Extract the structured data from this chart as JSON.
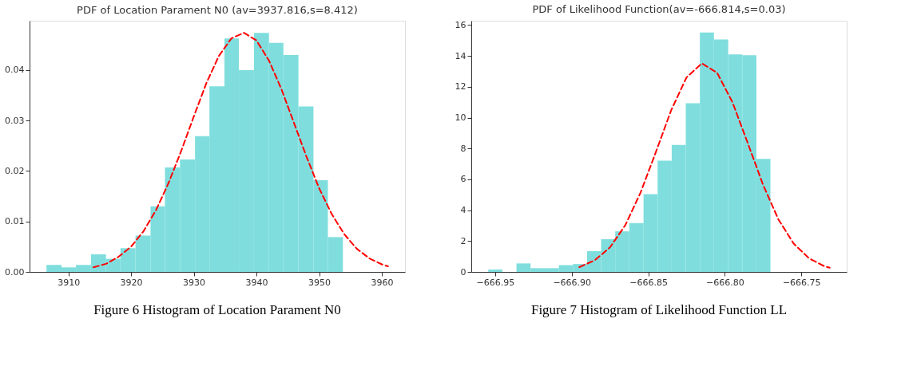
{
  "chart_data": [
    {
      "type": "histogram",
      "title": "PDF of Location Parament N0 (av=3937.816,s=8.412)",
      "annotations": [
        "Figure 6 Histogram of Location Parament N0"
      ],
      "xlim": [
        3903.8,
        3963.7
      ],
      "xticks": [
        3910,
        3920,
        3930,
        3940,
        3950,
        3960
      ],
      "ylim": [
        0,
        0.0498
      ],
      "yticks": [
        {
          "value": 0,
          "label": "0.00"
        },
        0.01,
        0.02,
        0.03,
        0.04
      ],
      "grid": false,
      "series": [
        {
          "type": "histogram",
          "color": "#7fdedd",
          "bins": [
            3906.5,
            3908.9,
            3911.2,
            3913.6,
            3916.0,
            3918.3,
            3920.7,
            3923.1,
            3925.4,
            3927.8,
            3930.2,
            3932.5,
            3934.9,
            3937.2,
            3939.6,
            3942.0,
            3944.3,
            3946.7,
            3949.1,
            3951.4,
            3953.8
          ],
          "values": [
            0.0014,
            0.0009,
            0.0014,
            0.0035,
            0.0026,
            0.0047,
            0.0072,
            0.013,
            0.0207,
            0.0223,
            0.0269,
            0.0368,
            0.0463,
            0.04,
            0.0474,
            0.0454,
            0.043,
            0.0328,
            0.0182,
            0.0069
          ]
        },
        {
          "type": "line",
          "color": "#ff0000",
          "line_style": "dashed",
          "x": [
            3914,
            3916,
            3918,
            3920,
            3922,
            3924,
            3926,
            3928,
            3930,
            3932,
            3934,
            3936,
            3938,
            3940,
            3942,
            3944,
            3946,
            3948,
            3950,
            3952,
            3954,
            3956,
            3958,
            3960,
            3961
          ],
          "values": [
            0.0009,
            0.0016,
            0.003,
            0.005,
            0.0081,
            0.0123,
            0.0177,
            0.024,
            0.0308,
            0.0374,
            0.0428,
            0.0463,
            0.0474,
            0.0459,
            0.0419,
            0.0362,
            0.0295,
            0.0228,
            0.0166,
            0.0115,
            0.0075,
            0.0046,
            0.0027,
            0.0015,
            0.0011
          ]
        }
      ]
    },
    {
      "type": "histogram",
      "title": "PDF of Likelihood Function(av=-666.814,s=0.03)",
      "annotations": [
        "Figure 7 Histogram of Likelihood Function LL"
      ],
      "xlim": [
        -666.9656,
        -666.7204
      ],
      "xticks": [
        {
          "value": -666.95,
          "label": "−666.95"
        },
        {
          "value": -666.9,
          "label": "−666.90"
        },
        {
          "value": -666.85,
          "label": "−666.85"
        },
        {
          "value": -666.8,
          "label": "−666.80"
        },
        {
          "value": -666.75,
          "label": "−666.75"
        }
      ],
      "ylim": [
        0,
        16.28
      ],
      "yticks": [
        0,
        2,
        4,
        6,
        8,
        10,
        12,
        14,
        16
      ],
      "grid": false,
      "series": [
        {
          "type": "histogram",
          "color": "#7fdedd",
          "bins": [
            -666.9545,
            -666.9453,
            -666.9361,
            -666.9269,
            -666.9176,
            -666.9084,
            -666.8992,
            -666.89,
            -666.8808,
            -666.8716,
            -666.8624,
            -666.8531,
            -666.8439,
            -666.8347,
            -666.8255,
            -666.8163,
            -666.8071,
            -666.7978,
            -666.7886,
            -666.7794,
            -666.7702
          ],
          "values": [
            0.15,
            0,
            0.55,
            0.24,
            0.24,
            0.44,
            0.51,
            1.35,
            2.12,
            2.63,
            3.16,
            5.04,
            7.21,
            8.23,
            10.93,
            15.52,
            15.06,
            14.09,
            14.04,
            7.33
          ]
        },
        {
          "type": "line",
          "color": "#ff0000",
          "line_style": "dashed",
          "x": [
            -666.895,
            -666.885,
            -666.875,
            -666.865,
            -666.855,
            -666.845,
            -666.835,
            -666.825,
            -666.815,
            -666.805,
            -666.795,
            -666.785,
            -666.775,
            -666.765,
            -666.755,
            -666.745,
            -666.735,
            -666.7315
          ],
          "values": [
            0.31,
            0.75,
            1.59,
            3.03,
            5.15,
            7.78,
            10.49,
            12.61,
            13.52,
            12.9,
            10.99,
            8.34,
            5.64,
            3.4,
            1.83,
            0.88,
            0.37,
            0.27
          ]
        }
      ]
    }
  ]
}
